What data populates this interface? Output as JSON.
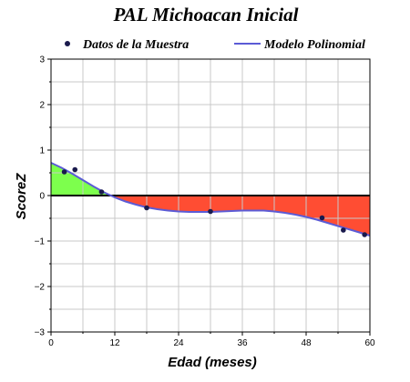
{
  "chart_data": {
    "type": "line",
    "title": "PAL Michoacan Inicial",
    "xlabel": "Edad (meses)",
    "ylabel": "ScoreZ",
    "xlim": [
      0,
      60
    ],
    "ylim": [
      -3,
      3
    ],
    "x_ticks": [
      0,
      12,
      24,
      36,
      48,
      60
    ],
    "y_ticks": [
      -3,
      -2,
      -1,
      0,
      1,
      2,
      3
    ],
    "grid": true,
    "legend_position": "top",
    "legend": {
      "points_label": "Datos de la Muestra",
      "line_label": "Modelo Polinomial"
    },
    "series": [
      {
        "name": "Datos de la Muestra",
        "kind": "scatter",
        "color": "#1a1a4d",
        "x": [
          2.5,
          4.5,
          9.5,
          18,
          30,
          51,
          55,
          59
        ],
        "y": [
          0.52,
          0.57,
          0.08,
          -0.27,
          -0.35,
          -0.49,
          -0.76,
          -0.86
        ]
      },
      {
        "name": "Modelo Polinomial",
        "kind": "line",
        "color": "#5b5bd6",
        "x": [
          0,
          2,
          4,
          6,
          8,
          10,
          12,
          14,
          16,
          18,
          20,
          22,
          24,
          26,
          28,
          30,
          32,
          34,
          36,
          38,
          40,
          42,
          44,
          46,
          48,
          50,
          52,
          54,
          56,
          58,
          60
        ],
        "y": [
          0.72,
          0.61,
          0.48,
          0.34,
          0.2,
          0.07,
          -0.04,
          -0.13,
          -0.2,
          -0.26,
          -0.3,
          -0.33,
          -0.35,
          -0.36,
          -0.36,
          -0.36,
          -0.35,
          -0.34,
          -0.33,
          -0.33,
          -0.33,
          -0.35,
          -0.38,
          -0.42,
          -0.47,
          -0.53,
          -0.6,
          -0.67,
          -0.74,
          -0.81,
          -0.88
        ]
      }
    ],
    "fill_colors": {
      "above_zero": "#7dff4d",
      "below_zero": "#ff4d33"
    },
    "zero_line_color": "#000000",
    "grid_color": "#c8c8c8"
  }
}
